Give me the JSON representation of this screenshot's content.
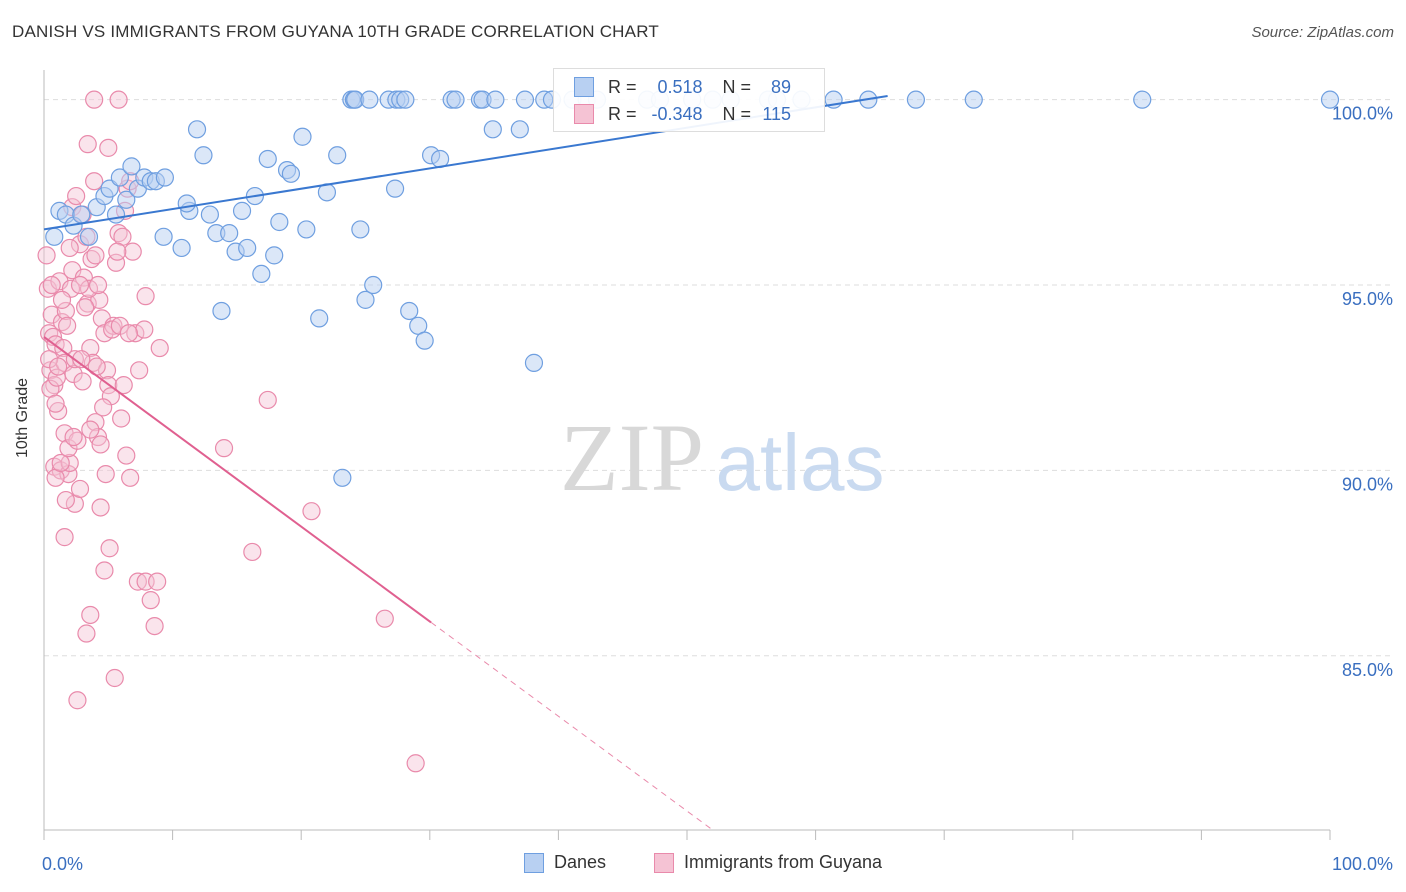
{
  "title": "DANISH VS IMMIGRANTS FROM GUYANA 10TH GRADE CORRELATION CHART",
  "source": "Source: ZipAtlas.com",
  "watermark": {
    "zip": "ZIP",
    "atlas": "atlas"
  },
  "colors": {
    "danes": "#6f9fe0",
    "danes_fill": "#b8d0f2",
    "danes_line": "#3a78d0",
    "guyana": "#e98aab",
    "guyana_fill": "#f5c3d4",
    "guyana_line": "#e06090",
    "axis_text_blue": "#3a6fc0",
    "grid": "#dddddd"
  },
  "legend": {
    "rows": [
      {
        "r_label": "R =",
        "r_value": "0.518",
        "n_label": "N =",
        "n_value": "89"
      },
      {
        "r_label": "R =",
        "r_value": "-0.348",
        "n_label": "N =",
        "n_value": "115"
      }
    ]
  },
  "bottom_legend": {
    "danes": "Danes",
    "guyana": "Immigrants from Guyana"
  },
  "chart_data": {
    "type": "scatter",
    "title": "DANISH VS IMMIGRANTS FROM GUYANA 10TH GRADE CORRELATION CHART",
    "xlabel": "",
    "ylabel": "10th Grade",
    "xlim": [
      0,
      100
    ],
    "ylim": [
      80.3,
      100.8
    ],
    "x_tick_labels": [
      "0.0%",
      "100.0%"
    ],
    "y_ticks": [
      85,
      90,
      95,
      100
    ],
    "y_tick_labels": [
      "85.0%",
      "90.0%",
      "95.0%",
      "100.0%"
    ],
    "series": [
      {
        "name": "Danes",
        "r": 0.518,
        "n": 89,
        "trend": {
          "x": [
            0,
            65.6
          ],
          "y": [
            96.5,
            100.1
          ]
        },
        "points": [
          [
            0.8,
            96.3
          ],
          [
            1.2,
            97.0
          ],
          [
            1.7,
            96.9
          ],
          [
            2.3,
            96.6
          ],
          [
            2.9,
            96.9
          ],
          [
            3.5,
            96.3
          ],
          [
            4.1,
            97.1
          ],
          [
            4.7,
            97.4
          ],
          [
            5.1,
            97.6
          ],
          [
            5.6,
            96.9
          ],
          [
            5.9,
            97.9
          ],
          [
            6.4,
            97.3
          ],
          [
            6.8,
            98.2
          ],
          [
            7.3,
            97.6
          ],
          [
            7.8,
            97.9
          ],
          [
            8.3,
            97.8
          ],
          [
            8.7,
            97.8
          ],
          [
            9.4,
            97.9
          ],
          [
            9.3,
            96.3
          ],
          [
            10.7,
            96.0
          ],
          [
            11.3,
            97.0
          ],
          [
            11.1,
            97.2
          ],
          [
            11.9,
            99.2
          ],
          [
            12.4,
            98.5
          ],
          [
            12.9,
            96.9
          ],
          [
            13.4,
            96.4
          ],
          [
            13.8,
            94.3
          ],
          [
            14.4,
            96.4
          ],
          [
            14.9,
            95.9
          ],
          [
            15.4,
            97.0
          ],
          [
            15.8,
            96.0
          ],
          [
            16.4,
            97.4
          ],
          [
            16.9,
            95.3
          ],
          [
            17.4,
            98.4
          ],
          [
            17.9,
            95.8
          ],
          [
            18.3,
            96.7
          ],
          [
            18.9,
            98.1
          ],
          [
            19.2,
            98.0
          ],
          [
            20.1,
            99.0
          ],
          [
            20.4,
            96.5
          ],
          [
            21.4,
            94.1
          ],
          [
            22.0,
            97.5
          ],
          [
            22.8,
            98.5
          ],
          [
            23.2,
            89.8
          ],
          [
            23.9,
            100.0
          ],
          [
            24.1,
            100.0
          ],
          [
            24.6,
            96.5
          ],
          [
            25.0,
            94.6
          ],
          [
            25.6,
            95.0
          ],
          [
            24.2,
            100.0
          ],
          [
            25.3,
            100.0
          ],
          [
            26.8,
            100.0
          ],
          [
            27.3,
            97.6
          ],
          [
            27.4,
            100.0
          ],
          [
            27.7,
            100.0
          ],
          [
            28.1,
            100.0
          ],
          [
            28.4,
            94.3
          ],
          [
            29.1,
            93.9
          ],
          [
            29.6,
            93.5
          ],
          [
            30.1,
            98.5
          ],
          [
            30.8,
            98.4
          ],
          [
            31.7,
            100.0
          ],
          [
            32.0,
            100.0
          ],
          [
            33.9,
            100.0
          ],
          [
            34.1,
            100.0
          ],
          [
            34.9,
            99.2
          ],
          [
            35.1,
            100.0
          ],
          [
            37.0,
            99.2
          ],
          [
            37.4,
            100.0
          ],
          [
            38.1,
            92.9
          ],
          [
            38.9,
            100.0
          ],
          [
            39.5,
            100.0
          ],
          [
            41.1,
            100.0
          ],
          [
            42.2,
            100.0
          ],
          [
            43.0,
            100.0
          ],
          [
            46.9,
            100.0
          ],
          [
            47.9,
            100.0
          ],
          [
            50.4,
            100.0
          ],
          [
            52.0,
            100.0
          ],
          [
            53.4,
            100.0
          ],
          [
            56.3,
            100.0
          ],
          [
            57.0,
            100.0
          ],
          [
            58.9,
            100.0
          ],
          [
            61.4,
            100.0
          ],
          [
            64.1,
            100.0
          ],
          [
            67.8,
            100.0
          ],
          [
            72.3,
            100.0
          ],
          [
            85.4,
            100.0
          ],
          [
            100.0,
            100.0
          ]
        ]
      },
      {
        "name": "Immigrants from Guyana",
        "r": -0.348,
        "n": 115,
        "trend": {
          "x": [
            0,
            30.1
          ],
          "y": [
            93.6,
            85.9
          ]
        },
        "trend_extension": {
          "x": [
            30.1,
            52.0
          ],
          "y": [
            85.9,
            80.3
          ]
        },
        "points": [
          [
            0.3,
            94.9
          ],
          [
            0.4,
            93.7
          ],
          [
            0.5,
            92.7
          ],
          [
            0.6,
            94.2
          ],
          [
            0.7,
            93.6
          ],
          [
            0.8,
            92.3
          ],
          [
            0.5,
            92.2
          ],
          [
            0.9,
            93.4
          ],
          [
            1.0,
            92.5
          ],
          [
            0.8,
            90.1
          ],
          [
            1.1,
            91.6
          ],
          [
            1.3,
            90.0
          ],
          [
            1.2,
            95.1
          ],
          [
            1.4,
            94.0
          ],
          [
            1.5,
            93.3
          ],
          [
            1.6,
            92.9
          ],
          [
            1.7,
            94.3
          ],
          [
            1.8,
            93.9
          ],
          [
            1.9,
            89.9
          ],
          [
            2.0,
            90.2
          ],
          [
            2.1,
            94.9
          ],
          [
            2.2,
            95.4
          ],
          [
            2.3,
            92.6
          ],
          [
            2.4,
            93.0
          ],
          [
            2.2,
            97.1
          ],
          [
            2.5,
            97.4
          ],
          [
            2.8,
            96.1
          ],
          [
            3.0,
            96.9
          ],
          [
            3.1,
            95.2
          ],
          [
            3.4,
            94.5
          ],
          [
            3.6,
            93.3
          ],
          [
            3.8,
            92.9
          ],
          [
            4.0,
            91.3
          ],
          [
            4.2,
            90.9
          ],
          [
            4.4,
            90.7
          ],
          [
            3.7,
            95.7
          ],
          [
            4.0,
            95.8
          ],
          [
            4.3,
            94.6
          ],
          [
            4.5,
            94.1
          ],
          [
            4.7,
            93.7
          ],
          [
            4.9,
            92.7
          ],
          [
            5.0,
            92.3
          ],
          [
            5.2,
            92.0
          ],
          [
            5.4,
            93.9
          ],
          [
            5.6,
            95.6
          ],
          [
            5.8,
            96.4
          ],
          [
            6.1,
            96.3
          ],
          [
            6.3,
            97.0
          ],
          [
            6.5,
            97.6
          ],
          [
            6.7,
            97.8
          ],
          [
            6.9,
            95.9
          ],
          [
            3.4,
            98.8
          ],
          [
            3.9,
            97.8
          ],
          [
            5.0,
            98.7
          ],
          [
            3.9,
            100.0
          ],
          [
            5.8,
            100.0
          ],
          [
            1.6,
            91.0
          ],
          [
            2.4,
            89.1
          ],
          [
            2.8,
            89.5
          ],
          [
            4.4,
            89.0
          ],
          [
            4.7,
            87.3
          ],
          [
            5.1,
            87.9
          ],
          [
            6.4,
            90.4
          ],
          [
            6.7,
            89.8
          ],
          [
            7.1,
            93.7
          ],
          [
            7.4,
            92.7
          ],
          [
            7.8,
            93.8
          ],
          [
            7.9,
            94.7
          ],
          [
            7.3,
            87.0
          ],
          [
            7.9,
            87.0
          ],
          [
            8.3,
            86.5
          ],
          [
            8.6,
            85.8
          ],
          [
            8.8,
            87.0
          ],
          [
            9.0,
            93.3
          ],
          [
            1.6,
            88.2
          ],
          [
            2.6,
            83.8
          ],
          [
            3.3,
            85.6
          ],
          [
            3.6,
            86.1
          ],
          [
            5.5,
            84.4
          ],
          [
            14.0,
            90.6
          ],
          [
            17.4,
            91.9
          ],
          [
            16.2,
            87.8
          ],
          [
            20.8,
            88.9
          ],
          [
            26.5,
            86.0
          ],
          [
            28.9,
            82.1
          ],
          [
            0.4,
            93.0
          ],
          [
            0.6,
            95.0
          ],
          [
            0.9,
            89.8
          ],
          [
            1.3,
            90.2
          ],
          [
            1.9,
            90.6
          ],
          [
            2.6,
            90.8
          ],
          [
            3.0,
            92.4
          ],
          [
            3.2,
            94.4
          ],
          [
            3.5,
            94.9
          ],
          [
            4.1,
            92.8
          ],
          [
            4.6,
            91.7
          ],
          [
            5.3,
            93.8
          ],
          [
            5.9,
            93.9
          ],
          [
            6.2,
            92.3
          ],
          [
            6.6,
            93.7
          ],
          [
            2.0,
            96.0
          ],
          [
            2.8,
            95.0
          ],
          [
            3.3,
            96.3
          ],
          [
            1.1,
            92.8
          ],
          [
            0.2,
            95.8
          ],
          [
            1.7,
            89.2
          ],
          [
            2.3,
            90.9
          ],
          [
            4.8,
            89.9
          ],
          [
            6.0,
            91.4
          ],
          [
            0.9,
            91.8
          ],
          [
            1.4,
            94.6
          ],
          [
            2.9,
            93.0
          ],
          [
            3.6,
            91.1
          ],
          [
            4.2,
            95.0
          ],
          [
            5.7,
            95.9
          ]
        ]
      }
    ]
  }
}
